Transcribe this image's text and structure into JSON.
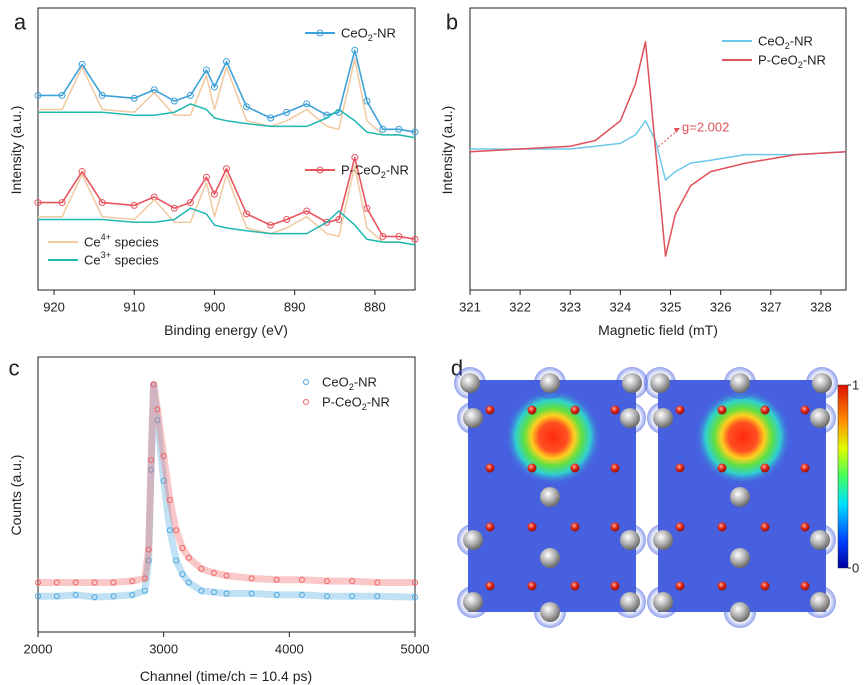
{
  "chart_data": [
    {
      "type": "line",
      "label": "a",
      "x_label": "Binding energy (eV)",
      "y_label": "Intensity (a.u.)",
      "xlim": [
        922,
        875
      ],
      "xticks": [
        920,
        910,
        900,
        890,
        880
      ],
      "ylim": [
        0,
        10
      ],
      "x": [
        922,
        919,
        916.5,
        914,
        910,
        907.5,
        905,
        903,
        901,
        900,
        898.5,
        896,
        893,
        891,
        888.5,
        886,
        884.5,
        882.5,
        881,
        879,
        877,
        875
      ],
      "series": [
        {
          "name": "CeO2-NR",
          "color": "#3ea0d8",
          "marker": "open-circle",
          "values": [
            6.9,
            6.9,
            8.0,
            6.9,
            6.8,
            7.1,
            6.7,
            6.9,
            7.8,
            7.2,
            8.1,
            6.5,
            6.1,
            6.3,
            6.6,
            6.2,
            6.3,
            8.5,
            6.7,
            5.7,
            5.7,
            5.6
          ]
        },
        {
          "name": "P-CeO2-NR",
          "color": "#e8555f",
          "marker": "open-circle",
          "values": [
            3.1,
            3.1,
            4.2,
            3.1,
            3.0,
            3.3,
            2.9,
            3.1,
            4.0,
            3.4,
            4.3,
            2.7,
            2.3,
            2.5,
            2.8,
            2.4,
            2.5,
            4.7,
            2.9,
            1.9,
            1.9,
            1.8
          ]
        },
        {
          "name": "Ce4+ species",
          "color": "#f0c9a0",
          "x": [
            922,
            919,
            916.5,
            914,
            910,
            907.5,
            905,
            903,
            901,
            900,
            898.5,
            896,
            893,
            891,
            888.5,
            886,
            884.5,
            882.5,
            881,
            879,
            877,
            875,
            null,
            922,
            919,
            916.5,
            914,
            910,
            907.5,
            905,
            903,
            901,
            900,
            898.5,
            896,
            893,
            891,
            888.5,
            886,
            884.5,
            882.5,
            881,
            879,
            877,
            875
          ],
          "values": [
            6.4,
            6.4,
            7.9,
            6.4,
            6.3,
            7.0,
            6.2,
            6.2,
            7.6,
            6.4,
            7.9,
            6.0,
            5.8,
            6.0,
            6.4,
            5.8,
            5.7,
            8.2,
            6.0,
            5.5,
            5.5,
            5.4,
            null,
            2.6,
            2.6,
            4.1,
            2.6,
            2.5,
            3.2,
            2.4,
            2.4,
            3.8,
            2.6,
            4.1,
            2.2,
            2.0,
            2.2,
            2.6,
            2.0,
            1.9,
            4.4,
            2.2,
            1.7,
            1.7,
            1.6
          ]
        },
        {
          "name": "Ce3+ species",
          "color": "#20b8b0",
          "x": [
            922,
            919,
            916.5,
            914,
            910,
            907.5,
            905,
            903,
            901,
            900,
            898.5,
            896,
            893,
            891,
            888.5,
            886,
            884.5,
            882.5,
            881,
            879,
            877,
            875,
            null,
            922,
            919,
            916.5,
            914,
            910,
            907.5,
            905,
            903,
            901,
            900,
            898.5,
            896,
            893,
            891,
            888.5,
            886,
            884.5,
            882.5,
            881,
            879,
            877,
            875
          ],
          "values": [
            6.3,
            6.3,
            6.3,
            6.3,
            6.2,
            6.2,
            6.3,
            6.6,
            6.4,
            6.1,
            6.0,
            5.9,
            5.8,
            5.8,
            5.8,
            6.1,
            6.4,
            6.0,
            5.6,
            5.5,
            5.5,
            5.4,
            null,
            2.5,
            2.5,
            2.5,
            2.5,
            2.4,
            2.4,
            2.5,
            2.9,
            2.7,
            2.3,
            2.2,
            2.1,
            2.0,
            2.0,
            2.0,
            2.4,
            2.8,
            2.3,
            1.8,
            1.7,
            1.7,
            1.6
          ]
        }
      ]
    },
    {
      "type": "line",
      "label": "b",
      "x_label": "Magnetic field (mT)",
      "y_label": "Intensity (a.u.)",
      "xlim": [
        321,
        328.5
      ],
      "xticks": [
        321,
        322,
        323,
        324,
        325,
        326,
        327,
        328
      ],
      "ylim": [
        0,
        10
      ],
      "x": [
        321,
        322,
        323,
        323.5,
        324,
        324.3,
        324.5,
        324.7,
        324.9,
        325.1,
        325.4,
        325.8,
        326.5,
        327.5,
        328.5
      ],
      "series": [
        {
          "name": "CeO2-NR",
          "color": "#6cc8ea",
          "values": [
            5.0,
            5.0,
            5.0,
            5.1,
            5.2,
            5.5,
            6.0,
            5.3,
            3.9,
            4.2,
            4.5,
            4.6,
            4.8,
            4.8,
            4.9
          ]
        },
        {
          "name": "P-CeO2-NR",
          "color": "#e0505a",
          "values": [
            4.9,
            5.0,
            5.1,
            5.3,
            6.0,
            7.3,
            8.8,
            5.0,
            1.2,
            2.7,
            3.7,
            4.2,
            4.5,
            4.8,
            4.9
          ]
        }
      ],
      "annotation": "g=2.002"
    },
    {
      "type": "scatter",
      "label": "c",
      "x_label": "Channel (time/ch = 10.4 ps)",
      "y_label": "Counts (a.u.)",
      "xlim": [
        2000,
        5000
      ],
      "xticks": [
        2000,
        3000,
        4000,
        5000
      ],
      "ylim": [
        0,
        10
      ],
      "x": [
        2000,
        2150,
        2300,
        2450,
        2600,
        2750,
        2850,
        2880,
        2900,
        2920,
        2950,
        3000,
        3050,
        3100,
        3150,
        3200,
        3300,
        3400,
        3500,
        3700,
        3900,
        4100,
        4300,
        4500,
        4700,
        5000
      ],
      "series": [
        {
          "name": "CeO2-NR",
          "color": "#4aa8e0",
          "values": [
            1.3,
            1.3,
            1.35,
            1.27,
            1.3,
            1.35,
            1.5,
            2.6,
            5.9,
            9.0,
            7.7,
            5.5,
            3.7,
            2.6,
            2.1,
            1.8,
            1.5,
            1.45,
            1.4,
            1.4,
            1.35,
            1.35,
            1.3,
            1.3,
            1.3,
            1.27
          ]
        },
        {
          "name": "P-CeO2-NR",
          "color": "#f06060",
          "values": [
            1.8,
            1.8,
            1.8,
            1.8,
            1.8,
            1.85,
            1.95,
            3.0,
            6.25,
            9.0,
            8.1,
            6.4,
            4.8,
            3.7,
            3.05,
            2.7,
            2.3,
            2.15,
            2.05,
            1.95,
            1.9,
            1.9,
            1.85,
            1.85,
            1.8,
            1.8
          ]
        }
      ]
    },
    {
      "type": "density-map",
      "label": "d",
      "colorbar": {
        "lim": [
          0,
          1
        ],
        "ticks": [
          0,
          1
        ]
      }
    }
  ]
}
